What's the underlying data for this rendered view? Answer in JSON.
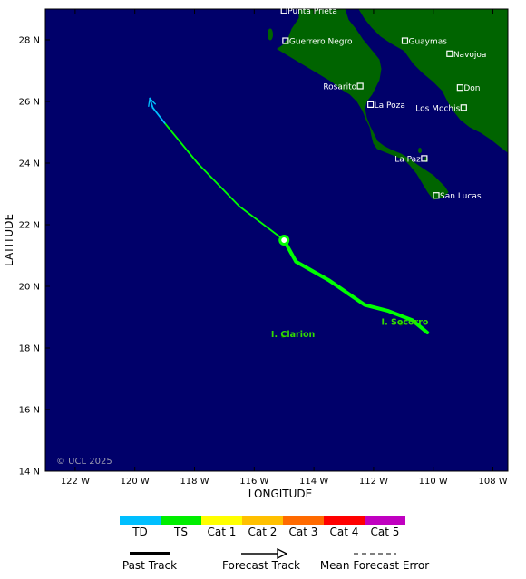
{
  "map": {
    "title": "",
    "lon_range": [
      -123.0,
      -107.5
    ],
    "lat_range": [
      14,
      29
    ],
    "x_axis_label": "LONGITUDE",
    "y_axis_label": "LATITUDE",
    "x_ticks": [
      {
        "lon": -122,
        "label": "122 W"
      },
      {
        "lon": -120,
        "label": "120 W"
      },
      {
        "lon": -118,
        "label": "118 W"
      },
      {
        "lon": -116,
        "label": "116 W"
      },
      {
        "lon": -114,
        "label": "114 W"
      },
      {
        "lon": -112,
        "label": "112 W"
      },
      {
        "lon": -110,
        "label": "110 W"
      },
      {
        "lon": -108,
        "label": "108 W"
      }
    ],
    "y_ticks": [
      {
        "lat": 14,
        "label": "14 N"
      },
      {
        "lat": 16,
        "label": "16 N"
      },
      {
        "lat": 18,
        "label": "18 N"
      },
      {
        "lat": 20,
        "label": "20 N"
      },
      {
        "lat": 22,
        "label": "22 N"
      },
      {
        "lat": 24,
        "label": "24 N"
      },
      {
        "lat": 26,
        "label": "26 N"
      },
      {
        "lat": 28,
        "label": "28 N"
      }
    ],
    "copyright": "© UCL 2025",
    "colors": {
      "ocean": "#00006a",
      "land": "#006400",
      "track_ts": "#00ff00",
      "track_td": "#00bfff",
      "city_text": "#ffffff",
      "island_text": "#33dd00"
    },
    "cities": [
      {
        "name": "Punta Prieta",
        "lon": -115.0,
        "lat": 28.95
      },
      {
        "name": "Guerrero Negro",
        "lon": -114.95,
        "lat": 27.97
      },
      {
        "name": "Guaymas",
        "lon": -110.95,
        "lat": 27.97
      },
      {
        "name": "Navojoa",
        "lon": -109.45,
        "lat": 27.55
      },
      {
        "name": "Rosarito",
        "lon": -112.45,
        "lat": 26.5
      },
      {
        "name": "Don",
        "lon": -109.1,
        "lat": 26.45
      },
      {
        "name": "La Poza",
        "lon": -112.1,
        "lat": 25.9
      },
      {
        "name": "Los Mochis",
        "lon": -108.98,
        "lat": 25.8
      },
      {
        "name": "La Paz",
        "lon": -110.3,
        "lat": 24.15
      },
      {
        "name": "San Lucas",
        "lon": -109.9,
        "lat": 22.95
      }
    ],
    "islands": [
      {
        "name": "I. Clarion",
        "lon": -114.7,
        "lat": 18.35
      },
      {
        "name": "I. Socorro",
        "lon": -110.95,
        "lat": 18.75
      }
    ],
    "past_track": [
      {
        "lon": -110.2,
        "lat": 18.5
      },
      {
        "lon": -110.7,
        "lat": 18.9
      },
      {
        "lon": -111.5,
        "lat": 19.2
      },
      {
        "lon": -112.3,
        "lat": 19.4
      },
      {
        "lon": -113.5,
        "lat": 20.2
      },
      {
        "lon": -114.6,
        "lat": 20.8
      },
      {
        "lon": -115.0,
        "lat": 21.5
      }
    ],
    "forecast_track": [
      {
        "lon": -115.0,
        "lat": 21.5,
        "category": "TS"
      },
      {
        "lon": -116.5,
        "lat": 22.6,
        "category": "TS"
      },
      {
        "lon": -117.9,
        "lat": 24.0,
        "category": "TS"
      },
      {
        "lon": -119.0,
        "lat": 25.3,
        "category": "TS"
      },
      {
        "lon": -119.4,
        "lat": 25.8,
        "category": "TD"
      },
      {
        "lon": -119.5,
        "lat": 26.1,
        "category": "TD"
      }
    ],
    "current_position": {
      "lon": -115.0,
      "lat": 21.5
    }
  },
  "legend": {
    "categories": [
      {
        "label": "TD",
        "color": "#00bfff"
      },
      {
        "label": "TS",
        "color": "#00ee00"
      },
      {
        "label": "Cat 1",
        "color": "#ffff00"
      },
      {
        "label": "Cat 2",
        "color": "#ffc000"
      },
      {
        "label": "Cat 3",
        "color": "#ff6a00"
      },
      {
        "label": "Cat 4",
        "color": "#ff0000"
      },
      {
        "label": "Cat 5",
        "color": "#c000c0"
      }
    ],
    "past_track_label": "Past Track",
    "forecast_track_label": "Forecast Track",
    "error_label": "Mean Forecast Error"
  }
}
